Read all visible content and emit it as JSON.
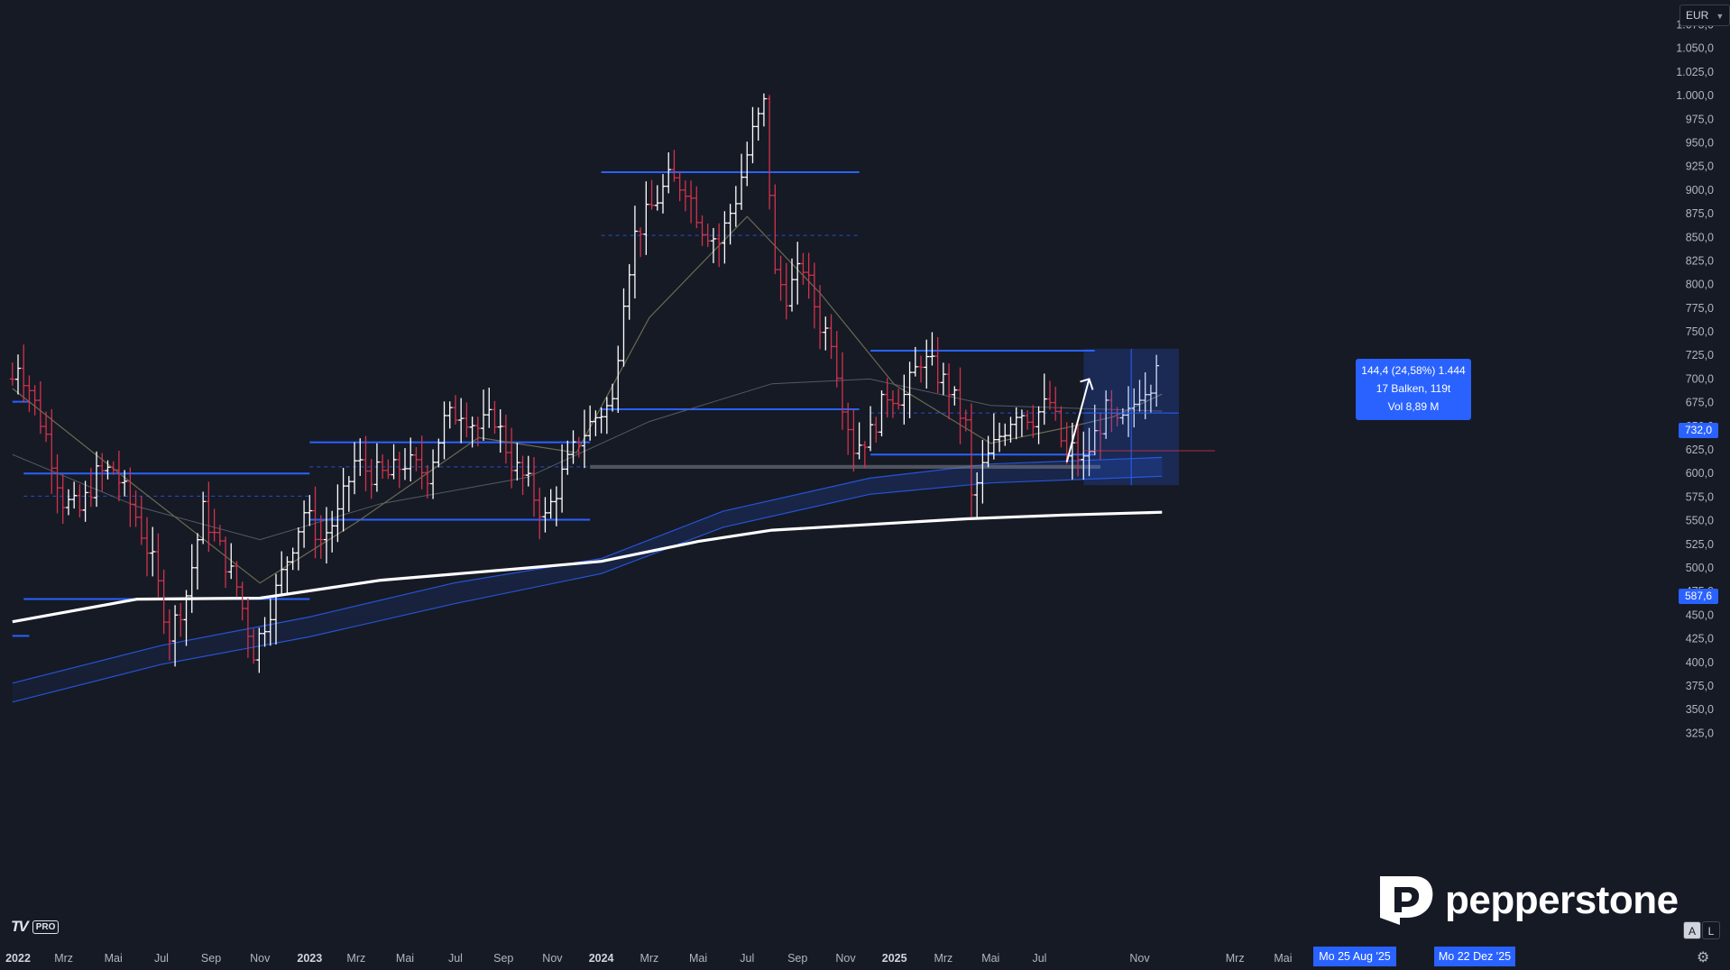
{
  "currency": {
    "label": "EUR",
    "chevron_icon": "chevron-down-icon"
  },
  "measure": {
    "line1": "144,4 (24,58%) 1.444",
    "line2": "17 Balken, 119t",
    "line3": "Vol 8,89 M"
  },
  "price_labels": {
    "upper": "732,0",
    "lower": "587,6"
  },
  "date_labels": {
    "start": "Mo 25 Aug '25",
    "end": "Mo 22 Dez '25"
  },
  "buttons": {
    "auto": "A",
    "log": "L",
    "settings_icon": "gear-icon"
  },
  "tradingview": {
    "mark": "TV",
    "pro": "PRO"
  },
  "brand": {
    "name": "pepperstone",
    "icon": "pepperstone-logo-icon"
  },
  "colors": {
    "background": "#161a25",
    "up": "#ffffff",
    "down": "#d2324b",
    "level": "#2962ff",
    "sma": "#ffffff"
  },
  "chart_data": {
    "type": "ohlc",
    "grid": false,
    "yaxis": {
      "min": 300,
      "max": 1075,
      "step": 25,
      "ticks": [
        "1.075,0",
        "1.050,0",
        "1.025,0",
        "1.000,0",
        "975,0",
        "950,0",
        "925,0",
        "900,0",
        "875,0",
        "850,0",
        "825,0",
        "800,0",
        "775,0",
        "750,0",
        "725,0",
        "700,0",
        "675,0",
        "650,0",
        "625,0",
        "600,0",
        "575,0",
        "550,0",
        "525,0",
        "500,0",
        "475,0",
        "450,0",
        "425,0",
        "400,0",
        "375,0",
        "350,0",
        "325,0"
      ]
    },
    "xaxis": {
      "ticks": [
        {
          "date": "2022-01-03",
          "label": "2022",
          "bold": true
        },
        {
          "date": "2022-03-01",
          "label": "Mrz"
        },
        {
          "date": "2022-05-02",
          "label": "Mai"
        },
        {
          "date": "2022-07-01",
          "label": "Jul"
        },
        {
          "date": "2022-09-01",
          "label": "Sep"
        },
        {
          "date": "2022-11-01",
          "label": "Nov"
        },
        {
          "date": "2023-01-02",
          "label": "2023",
          "bold": true
        },
        {
          "date": "2023-03-01",
          "label": "Mrz"
        },
        {
          "date": "2023-05-01",
          "label": "Mai"
        },
        {
          "date": "2023-07-03",
          "label": "Jul"
        },
        {
          "date": "2023-09-01",
          "label": "Sep"
        },
        {
          "date": "2023-11-01",
          "label": "Nov"
        },
        {
          "date": "2024-01-01",
          "label": "2024",
          "bold": true
        },
        {
          "date": "2024-03-01",
          "label": "Mrz"
        },
        {
          "date": "2024-05-01",
          "label": "Mai"
        },
        {
          "date": "2024-07-01",
          "label": "Jul"
        },
        {
          "date": "2024-09-02",
          "label": "Sep"
        },
        {
          "date": "2024-11-01",
          "label": "Nov"
        },
        {
          "date": "2025-01-01",
          "label": "2025",
          "bold": true
        },
        {
          "date": "2025-03-03",
          "label": "Mrz"
        },
        {
          "date": "2025-05-01",
          "label": "Mai"
        },
        {
          "date": "2025-07-01",
          "label": "Jul"
        },
        {
          "date": "2025-11-03",
          "label": "Nov"
        },
        {
          "date": "2026-03-02",
          "label": "Mrz"
        },
        {
          "date": "2026-05-01",
          "label": "Mai"
        },
        {
          "date": "2026-07-01",
          "label": "Jul"
        }
      ]
    },
    "waypoints": [
      [
        "2021-12-27",
        700
      ],
      [
        "2022-01-03",
        718
      ],
      [
        "2022-01-17",
        690
      ],
      [
        "2022-02-07",
        640
      ],
      [
        "2022-02-28",
        572
      ],
      [
        "2022-03-21",
        560
      ],
      [
        "2022-04-11",
        598
      ],
      [
        "2022-05-02",
        605
      ],
      [
        "2022-05-30",
        555
      ],
      [
        "2022-06-20",
        505
      ],
      [
        "2022-07-11",
        430
      ],
      [
        "2022-08-01",
        472
      ],
      [
        "2022-08-22",
        560
      ],
      [
        "2022-09-12",
        520
      ],
      [
        "2022-10-03",
        480
      ],
      [
        "2022-10-24",
        412
      ],
      [
        "2022-11-14",
        458
      ],
      [
        "2022-12-05",
        510
      ],
      [
        "2022-12-26",
        560
      ],
      [
        "2023-01-16",
        530
      ],
      [
        "2023-02-06",
        555
      ],
      [
        "2023-02-27",
        612
      ],
      [
        "2023-03-20",
        600
      ],
      [
        "2023-04-10",
        598
      ],
      [
        "2023-05-01",
        612
      ],
      [
        "2023-05-29",
        600
      ],
      [
        "2023-06-19",
        655
      ],
      [
        "2023-07-10",
        668
      ],
      [
        "2023-07-31",
        648
      ],
      [
        "2023-08-21",
        660
      ],
      [
        "2023-09-11",
        612
      ],
      [
        "2023-10-02",
        588
      ],
      [
        "2023-10-23",
        552
      ],
      [
        "2023-11-13",
        598
      ],
      [
        "2023-12-04",
        636
      ],
      [
        "2023-12-25",
        660
      ],
      [
        "2024-01-15",
        675
      ],
      [
        "2024-01-29",
        790
      ],
      [
        "2024-02-12",
        852
      ],
      [
        "2024-03-04",
        882
      ],
      [
        "2024-03-25",
        910
      ],
      [
        "2024-04-15",
        905
      ],
      [
        "2024-05-06",
        862
      ],
      [
        "2024-05-27",
        845
      ],
      [
        "2024-06-17",
        892
      ],
      [
        "2024-07-08",
        960
      ],
      [
        "2024-07-22",
        990
      ],
      [
        "2024-08-05",
        810
      ],
      [
        "2024-08-19",
        790
      ],
      [
        "2024-09-09",
        820
      ],
      [
        "2024-09-30",
        758
      ],
      [
        "2024-10-14",
        745
      ],
      [
        "2024-10-28",
        678
      ],
      [
        "2024-11-11",
        628
      ],
      [
        "2024-12-02",
        642
      ],
      [
        "2024-12-23",
        685
      ],
      [
        "2025-01-13",
        682
      ],
      [
        "2025-02-03",
        722
      ],
      [
        "2025-02-17",
        712
      ],
      [
        "2025-03-10",
        690
      ],
      [
        "2025-03-31",
        650
      ],
      [
        "2025-04-07",
        572
      ],
      [
        "2025-04-21",
        605
      ],
      [
        "2025-05-12",
        640
      ],
      [
        "2025-06-02",
        668
      ],
      [
        "2025-06-23",
        660
      ],
      [
        "2025-07-14",
        675
      ],
      [
        "2025-08-04",
        615
      ],
      [
        "2025-08-11",
        625
      ],
      [
        "2025-08-25",
        612
      ],
      [
        "2025-09-08",
        640
      ],
      [
        "2025-09-22",
        665
      ],
      [
        "2025-10-06",
        648
      ],
      [
        "2025-10-20",
        660
      ],
      [
        "2025-11-03",
        688
      ],
      [
        "2025-11-17",
        698
      ],
      [
        "2025-11-24",
        724
      ]
    ],
    "sma200": [
      [
        "2021-12-27",
        443
      ],
      [
        "2022-06-01",
        467
      ],
      [
        "2022-11-01",
        468
      ],
      [
        "2023-04-01",
        487
      ],
      [
        "2023-10-01",
        500
      ],
      [
        "2024-01-01",
        507
      ],
      [
        "2024-05-01",
        528
      ],
      [
        "2024-08-01",
        540
      ],
      [
        "2024-12-01",
        546
      ],
      [
        "2025-04-01",
        552
      ],
      [
        "2025-08-01",
        556
      ],
      [
        "2025-12-01",
        559
      ]
    ],
    "ema_ribbon_upper": [
      [
        "2021-12-27",
        378
      ],
      [
        "2022-07-01",
        418
      ],
      [
        "2023-01-01",
        448
      ],
      [
        "2023-07-01",
        484
      ],
      [
        "2024-01-01",
        510
      ],
      [
        "2024-06-01",
        560
      ],
      [
        "2024-12-01",
        595
      ],
      [
        "2025-05-01",
        610
      ],
      [
        "2025-12-01",
        617
      ]
    ],
    "ema_ribbon_lower": [
      [
        "2021-12-27",
        358
      ],
      [
        "2022-07-01",
        398
      ],
      [
        "2023-01-01",
        427
      ],
      [
        "2023-07-01",
        462
      ],
      [
        "2024-01-01",
        494
      ],
      [
        "2024-06-01",
        543
      ],
      [
        "2024-12-01",
        578
      ],
      [
        "2025-05-01",
        590
      ],
      [
        "2025-12-01",
        597
      ]
    ],
    "ema_fast": [
      [
        "2021-12-27",
        690
      ],
      [
        "2022-06-01",
        585
      ],
      [
        "2022-11-01",
        484
      ],
      [
        "2023-03-01",
        548
      ],
      [
        "2023-08-01",
        638
      ],
      [
        "2023-12-01",
        622
      ],
      [
        "2024-03-01",
        765
      ],
      [
        "2024-07-01",
        872
      ],
      [
        "2024-10-01",
        790
      ],
      [
        "2025-01-01",
        694
      ],
      [
        "2025-05-01",
        632
      ],
      [
        "2025-08-01",
        648
      ],
      [
        "2025-10-01",
        660
      ],
      [
        "2025-12-01",
        684
      ]
    ],
    "ema_slow": [
      [
        "2021-12-27",
        620
      ],
      [
        "2022-06-01",
        565
      ],
      [
        "2022-11-01",
        530
      ],
      [
        "2023-04-01",
        568
      ],
      [
        "2023-10-01",
        596
      ],
      [
        "2024-03-01",
        655
      ],
      [
        "2024-08-01",
        695
      ],
      [
        "2024-12-01",
        700
      ],
      [
        "2025-05-01",
        672
      ],
      [
        "2025-12-01",
        666
      ]
    ],
    "horizontal_levels": [
      {
        "from": "2021-12-27",
        "to": "2022-01-17",
        "price": 676
      },
      {
        "from": "2022-01-10",
        "to": "2023-01-02",
        "price": 600
      },
      {
        "from": "2022-01-10",
        "to": "2023-01-02",
        "price": 467
      },
      {
        "from": "2021-12-27",
        "to": "2022-01-17",
        "price": 428
      },
      {
        "from": "2023-01-02",
        "to": "2023-12-18",
        "price": 633
      },
      {
        "from": "2023-01-02",
        "to": "2023-12-18",
        "price": 551
      },
      {
        "from": "2024-01-01",
        "to": "2024-11-18",
        "price": 919
      },
      {
        "from": "2024-01-01",
        "to": "2024-11-18",
        "price": 668
      },
      {
        "from": "2024-12-02",
        "to": "2025-09-08",
        "price": 730
      },
      {
        "from": "2024-12-02",
        "to": "2025-09-08",
        "price": 620
      }
    ],
    "dashed_levels": [
      {
        "from": "2022-01-10",
        "to": "2023-01-02",
        "price": 576
      },
      {
        "from": "2023-01-02",
        "to": "2023-12-18",
        "price": 607
      },
      {
        "from": "2024-01-01",
        "to": "2024-11-18",
        "price": 852
      },
      {
        "from": "2024-12-02",
        "to": "2025-09-08",
        "price": 664
      }
    ],
    "zone": {
      "from": "2023-12-18",
      "to": "2025-09-15",
      "top": 609,
      "bottom": 605
    },
    "measure_box": {
      "from": "2025-08-25",
      "to": "2025-12-22",
      "high": 732.0,
      "low": 587.6
    }
  }
}
